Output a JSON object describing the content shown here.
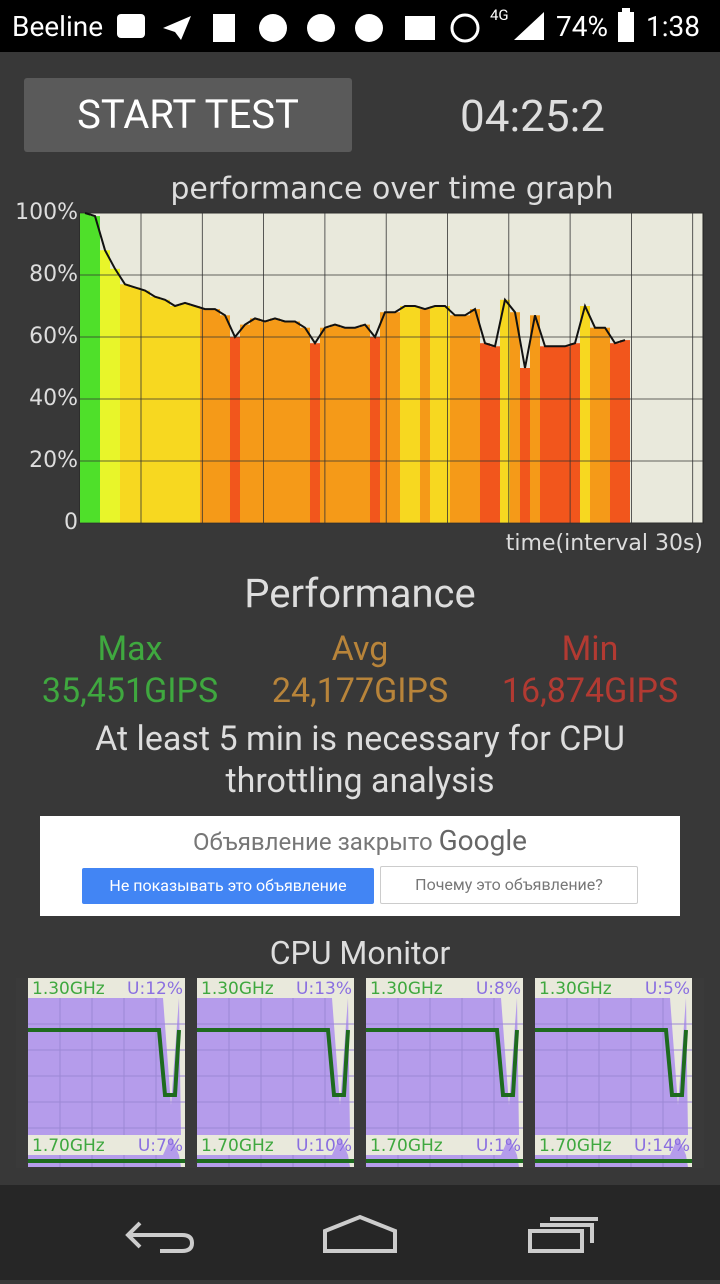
{
  "status_bar": {
    "carrier": "Beeline",
    "network": "4G",
    "battery": "74%",
    "time": "1:38"
  },
  "start_button": "START TEST",
  "timer": "04:25:2",
  "graph": {
    "title": "performance over time graph",
    "yticks": [
      {
        "value": 100,
        "label": "100%"
      },
      {
        "value": 80,
        "label": "80%"
      },
      {
        "value": 60,
        "label": "60%"
      },
      {
        "value": 40,
        "label": "40%"
      },
      {
        "value": 20,
        "label": "20%"
      },
      0
    ],
    "ylim": [
      0,
      100
    ],
    "x_label": "time(interval 30s)",
    "values": [
      100,
      99,
      88,
      82,
      77,
      76,
      75,
      73,
      72,
      70,
      71,
      70,
      69,
      69,
      67,
      60,
      64,
      66,
      65,
      66,
      65,
      65,
      63,
      58,
      63,
      64,
      63,
      63,
      64,
      60,
      68,
      68,
      70,
      70,
      69,
      70,
      70,
      67,
      67,
      69,
      58,
      57,
      72,
      68,
      50,
      67,
      57,
      57,
      57,
      58,
      70,
      63,
      63,
      58,
      59
    ]
  },
  "performance": {
    "title": "Performance",
    "max": {
      "label": "Max",
      "value": "35,451GIPS"
    },
    "avg": {
      "label": "Avg",
      "value": "24,177GIPS"
    },
    "min": {
      "label": "Min",
      "value": "16,874GIPS"
    }
  },
  "note": "At least 5 min is necessary for CPU throttling analysis",
  "ad": {
    "closed": "Объявление закрыто",
    "brand": "Google",
    "hide_button": "Не показывать это объявление",
    "why_button": "Почему это объявление?"
  },
  "cpu_monitor": {
    "title": "CPU Monitor",
    "cores": [
      {
        "freq": "1.30GHz",
        "usage": "U:12%"
      },
      {
        "freq": "1.30GHz",
        "usage": "U:13%"
      },
      {
        "freq": "1.30GHz",
        "usage": "U:8%"
      },
      {
        "freq": "1.30GHz",
        "usage": "U:5%"
      },
      {
        "freq": "1.70GHz",
        "usage": "U:7%"
      },
      {
        "freq": "1.70GHz",
        "usage": "U:10%"
      },
      {
        "freq": "1.70GHz",
        "usage": "U:1%"
      },
      {
        "freq": "1.70GHz",
        "usage": "U:14%"
      }
    ]
  }
}
